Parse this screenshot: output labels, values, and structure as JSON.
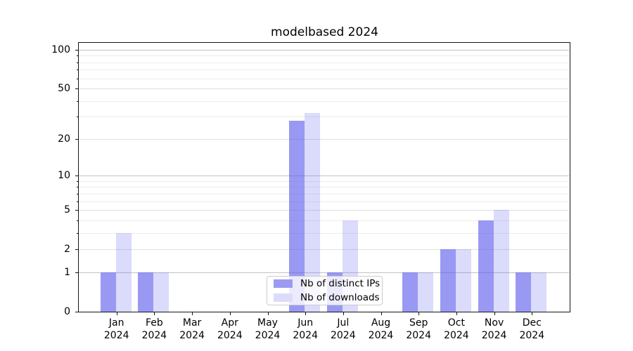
{
  "title": "modelbased 2024",
  "chart_data": {
    "type": "bar",
    "title": "modelbased 2024",
    "categories": [
      "Jan 2024",
      "Feb 2024",
      "Mar 2024",
      "Apr 2024",
      "May 2024",
      "Jun 2024",
      "Jul 2024",
      "Aug 2024",
      "Sep 2024",
      "Oct 2024",
      "Nov 2024",
      "Dec 2024"
    ],
    "series": [
      {
        "name": "Nb of distinct IPs",
        "values": [
          1,
          1,
          0,
          0,
          0,
          28,
          1,
          0,
          1,
          2,
          4,
          1
        ],
        "bar_color": "rgba(90,90,235,0.62)",
        "legend_color": "#9b9bf1"
      },
      {
        "name": "Nb of downloads",
        "values": [
          3,
          1,
          0,
          0,
          0,
          32,
          4,
          0,
          1,
          2,
          5,
          1
        ],
        "bar_color": "rgba(90,90,235,0.22)",
        "legend_color": "#dcdcfa"
      }
    ],
    "xlabel": "",
    "ylabel": "",
    "yscale": "log1p",
    "ylim": [
      0,
      113
    ],
    "yticks": [
      0,
      1,
      2,
      5,
      10,
      20,
      50,
      100
    ],
    "minor_yticks": [
      3,
      4,
      6,
      7,
      8,
      9,
      30,
      40,
      60,
      70,
      80,
      90
    ],
    "grid": "horizontal",
    "legend_position": "lower center",
    "grid_colors": {
      "major": "#c3c3c3",
      "labeled_minor": "#dfdfdf",
      "minor": "#ececec"
    }
  }
}
